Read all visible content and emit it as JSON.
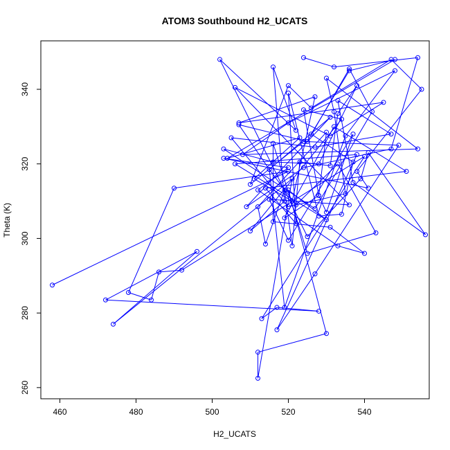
{
  "chart_data": {
    "type": "line",
    "title": "ATOM3 Southbound H2_UCATS",
    "xlabel": "H2_UCATS",
    "ylabel": "Theta (K)",
    "xlim": [
      455,
      557
    ],
    "ylim": [
      257,
      353
    ],
    "xticks": [
      460,
      480,
      500,
      520,
      540
    ],
    "yticks": [
      260,
      280,
      300,
      320,
      340
    ],
    "grid": false,
    "legend": "none",
    "series": [
      {
        "color": "#0000ff",
        "marker": "open-circle",
        "x": [
          458,
          520,
          490,
          478,
          484,
          486,
          492,
          540,
          513,
          517,
          528,
          472,
          496,
          474,
          521,
          512,
          512,
          530,
          520,
          530,
          506,
          538,
          517,
          527,
          549,
          524,
          510,
          520,
          526,
          547,
          555,
          538,
          541,
          503,
          520,
          512,
          533,
          540,
          531,
          516,
          516,
          525,
          543,
          533,
          522,
          515,
          519,
          535,
          548,
          520,
          508,
          554,
          530,
          532,
          535,
          520,
          505,
          527,
          547,
          533,
          537,
          556,
          541,
          539,
          525,
          502,
          522,
          516,
          519,
          510,
          534,
          524,
          528,
          530,
          537,
          520,
          515,
          536,
          506,
          531,
          545,
          507,
          527,
          521,
          511,
          523,
          504,
          548,
          536,
          526,
          537,
          534,
          528,
          520,
          522,
          514,
          551,
          532,
          519,
          528,
          530,
          512,
          514,
          519,
          521,
          523,
          531,
          533,
          538,
          528,
          516,
          503,
          527,
          542,
          536,
          525,
          507,
          515,
          531,
          509,
          524,
          547,
          554,
          532,
          524
        ],
        "y": [
          287.5,
          318,
          313.5,
          285.5,
          283.5,
          291,
          291.5,
          322,
          278.5,
          281.5,
          280.5,
          283.5,
          296.5,
          277,
          316,
          262.5,
          269.5,
          274.5,
          313,
          305,
          320,
          322.5,
          275.5,
          290.5,
          325,
          326,
          314.5,
          341,
          335,
          348,
          340,
          318,
          313.5,
          321.5,
          319,
          313,
          298,
          296,
          303,
          304.5,
          325.5,
          296,
          301.5,
          320,
          309,
          318.5,
          281.5,
          327.5,
          345,
          331,
          322.5,
          324,
          343,
          334,
          312,
          308.5,
          327,
          324.5,
          328,
          337,
          315,
          301,
          323,
          316,
          300.5,
          348,
          329,
          346,
          310,
          302,
          332,
          334.5,
          311.5,
          307,
          328,
          299.5,
          310.5,
          309,
          340.5,
          327.5,
          336.5,
          331,
          338,
          310,
          316,
          327,
          321.5,
          348,
          345,
          328,
          320.5,
          306.5,
          306,
          339,
          304,
          313.5,
          318,
          330,
          305.5,
          311.5,
          328.5,
          308.5,
          298.5,
          313,
          298,
          320.5,
          319.5,
          333.5,
          341,
          320,
          320.5,
          324,
          308,
          334,
          345.5,
          326,
          330.5,
          318.5,
          332.5,
          308.5,
          319,
          324,
          348.5,
          346,
          348.5
        ]
      }
    ]
  }
}
